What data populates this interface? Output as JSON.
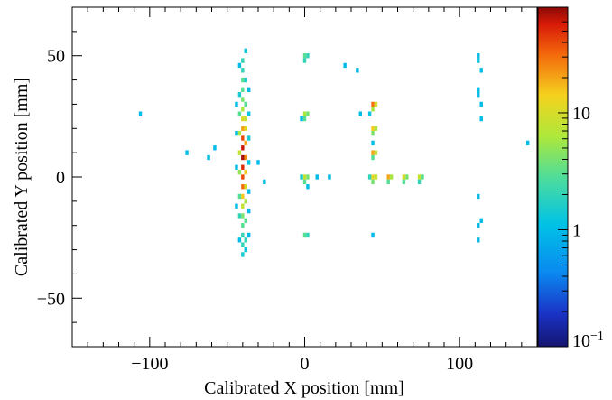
{
  "chart_data": {
    "type": "heatmap",
    "title": "",
    "xlabel": "Calibrated X position [mm]",
    "ylabel": "Calibrated Y position [mm]",
    "xlim": [
      -150,
      150
    ],
    "ylim": [
      -70,
      70
    ],
    "x_ticks": [
      -100,
      0,
      100
    ],
    "x_tick_labels": [
      "−100",
      "0",
      "100"
    ],
    "y_ticks": [
      -50,
      0,
      50
    ],
    "y_tick_labels": [
      "−50",
      "0",
      "50"
    ],
    "z_scale": "log",
    "zlim": [
      0.1,
      80
    ],
    "z_ticks": [
      {
        "value": 10,
        "label": "10"
      },
      {
        "value": 1,
        "label": "1"
      },
      {
        "value": 0.1,
        "base": "10",
        "exponent": "−1"
      }
    ],
    "bin_size": 2,
    "colorbar": "right",
    "grid": false,
    "bins": [
      [
        -40,
        48,
        2
      ],
      [
        -40,
        44,
        2
      ],
      [
        -40,
        40,
        3
      ],
      [
        -40,
        36,
        3
      ],
      [
        -40,
        32,
        4
      ],
      [
        -40,
        28,
        6
      ],
      [
        -40,
        24,
        10
      ],
      [
        -40,
        20,
        20
      ],
      [
        -40,
        16,
        40
      ],
      [
        -40,
        12,
        60
      ],
      [
        -40,
        8,
        70
      ],
      [
        -40,
        4,
        50
      ],
      [
        -40,
        0,
        40
      ],
      [
        -40,
        -4,
        30
      ],
      [
        -40,
        -8,
        15
      ],
      [
        -40,
        -12,
        8
      ],
      [
        -40,
        -16,
        4
      ],
      [
        -40,
        -20,
        3
      ],
      [
        -40,
        -24,
        2
      ],
      [
        -40,
        -28,
        2
      ],
      [
        -40,
        -32,
        1.5
      ],
      [
        -38,
        52,
        1.2
      ],
      [
        -38,
        40,
        1.5
      ],
      [
        -38,
        30,
        3
      ],
      [
        -38,
        24,
        8
      ],
      [
        -38,
        20,
        12
      ],
      [
        -38,
        14,
        20
      ],
      [
        -38,
        8,
        25
      ],
      [
        -38,
        2,
        15
      ],
      [
        -38,
        -4,
        10
      ],
      [
        -38,
        -10,
        6
      ],
      [
        -38,
        -18,
        3
      ],
      [
        -38,
        -26,
        2
      ],
      [
        -38,
        -30,
        1.2
      ],
      [
        -42,
        46,
        1
      ],
      [
        -42,
        34,
        1.5
      ],
      [
        -42,
        26,
        3
      ],
      [
        -42,
        18,
        6
      ],
      [
        -42,
        10,
        8
      ],
      [
        -42,
        2,
        5
      ],
      [
        -42,
        -8,
        3
      ],
      [
        -42,
        -16,
        2
      ],
      [
        -42,
        -26,
        1
      ],
      [
        -36,
        36,
        1
      ],
      [
        -36,
        26,
        1.2
      ],
      [
        -36,
        16,
        1.5
      ],
      [
        -36,
        6,
        1.2
      ],
      [
        -36,
        -6,
        1
      ],
      [
        -36,
        -14,
        1
      ],
      [
        -36,
        -24,
        1
      ],
      [
        -44,
        30,
        1
      ],
      [
        -44,
        18,
        1
      ],
      [
        -44,
        4,
        1
      ],
      [
        -44,
        -12,
        1
      ],
      [
        0,
        50,
        3
      ],
      [
        2,
        50,
        2
      ],
      [
        0,
        48,
        2
      ],
      [
        0,
        26,
        6
      ],
      [
        2,
        26,
        4
      ],
      [
        0,
        24,
        3
      ],
      [
        -2,
        24,
        1
      ],
      [
        0,
        0,
        8
      ],
      [
        2,
        0,
        4
      ],
      [
        0,
        -2,
        3
      ],
      [
        -2,
        0,
        1.5
      ],
      [
        0,
        -24,
        3
      ],
      [
        2,
        -24,
        2
      ],
      [
        2,
        -4,
        1
      ],
      [
        44,
        30,
        30
      ],
      [
        46,
        30,
        10
      ],
      [
        44,
        28,
        6
      ],
      [
        42,
        26,
        1.2
      ],
      [
        44,
        20,
        15
      ],
      [
        46,
        20,
        6
      ],
      [
        44,
        18,
        4
      ],
      [
        44,
        14,
        1
      ],
      [
        44,
        10,
        20
      ],
      [
        46,
        10,
        8
      ],
      [
        44,
        8,
        3
      ],
      [
        44,
        0,
        12
      ],
      [
        46,
        0,
        8
      ],
      [
        44,
        -2,
        4
      ],
      [
        42,
        0,
        2
      ],
      [
        54,
        0,
        20
      ],
      [
        56,
        0,
        6
      ],
      [
        54,
        -2,
        3
      ],
      [
        64,
        0,
        10
      ],
      [
        66,
        0,
        4
      ],
      [
        64,
        -2,
        3
      ],
      [
        74,
        0,
        8
      ],
      [
        76,
        0,
        3
      ],
      [
        74,
        -2,
        2
      ],
      [
        112,
        50,
        1
      ],
      [
        112,
        48,
        1.2
      ],
      [
        114,
        44,
        1
      ],
      [
        112,
        36,
        1
      ],
      [
        112,
        34,
        1
      ],
      [
        114,
        30,
        1
      ],
      [
        114,
        24,
        1
      ],
      [
        112,
        -8,
        1
      ],
      [
        114,
        -18,
        1
      ],
      [
        112,
        -20,
        1
      ],
      [
        112,
        -26,
        1
      ],
      [
        -106,
        26,
        1
      ],
      [
        -76,
        10,
        1
      ],
      [
        -62,
        8,
        1
      ],
      [
        -58,
        12,
        1
      ],
      [
        -30,
        6,
        1
      ],
      [
        -26,
        -2,
        1
      ],
      [
        16,
        0,
        1
      ],
      [
        26,
        46,
        1
      ],
      [
        34,
        44,
        1
      ],
      [
        36,
        26,
        1
      ],
      [
        44,
        -24,
        1
      ],
      [
        8,
        0,
        1
      ],
      [
        144,
        14,
        1
      ]
    ]
  }
}
